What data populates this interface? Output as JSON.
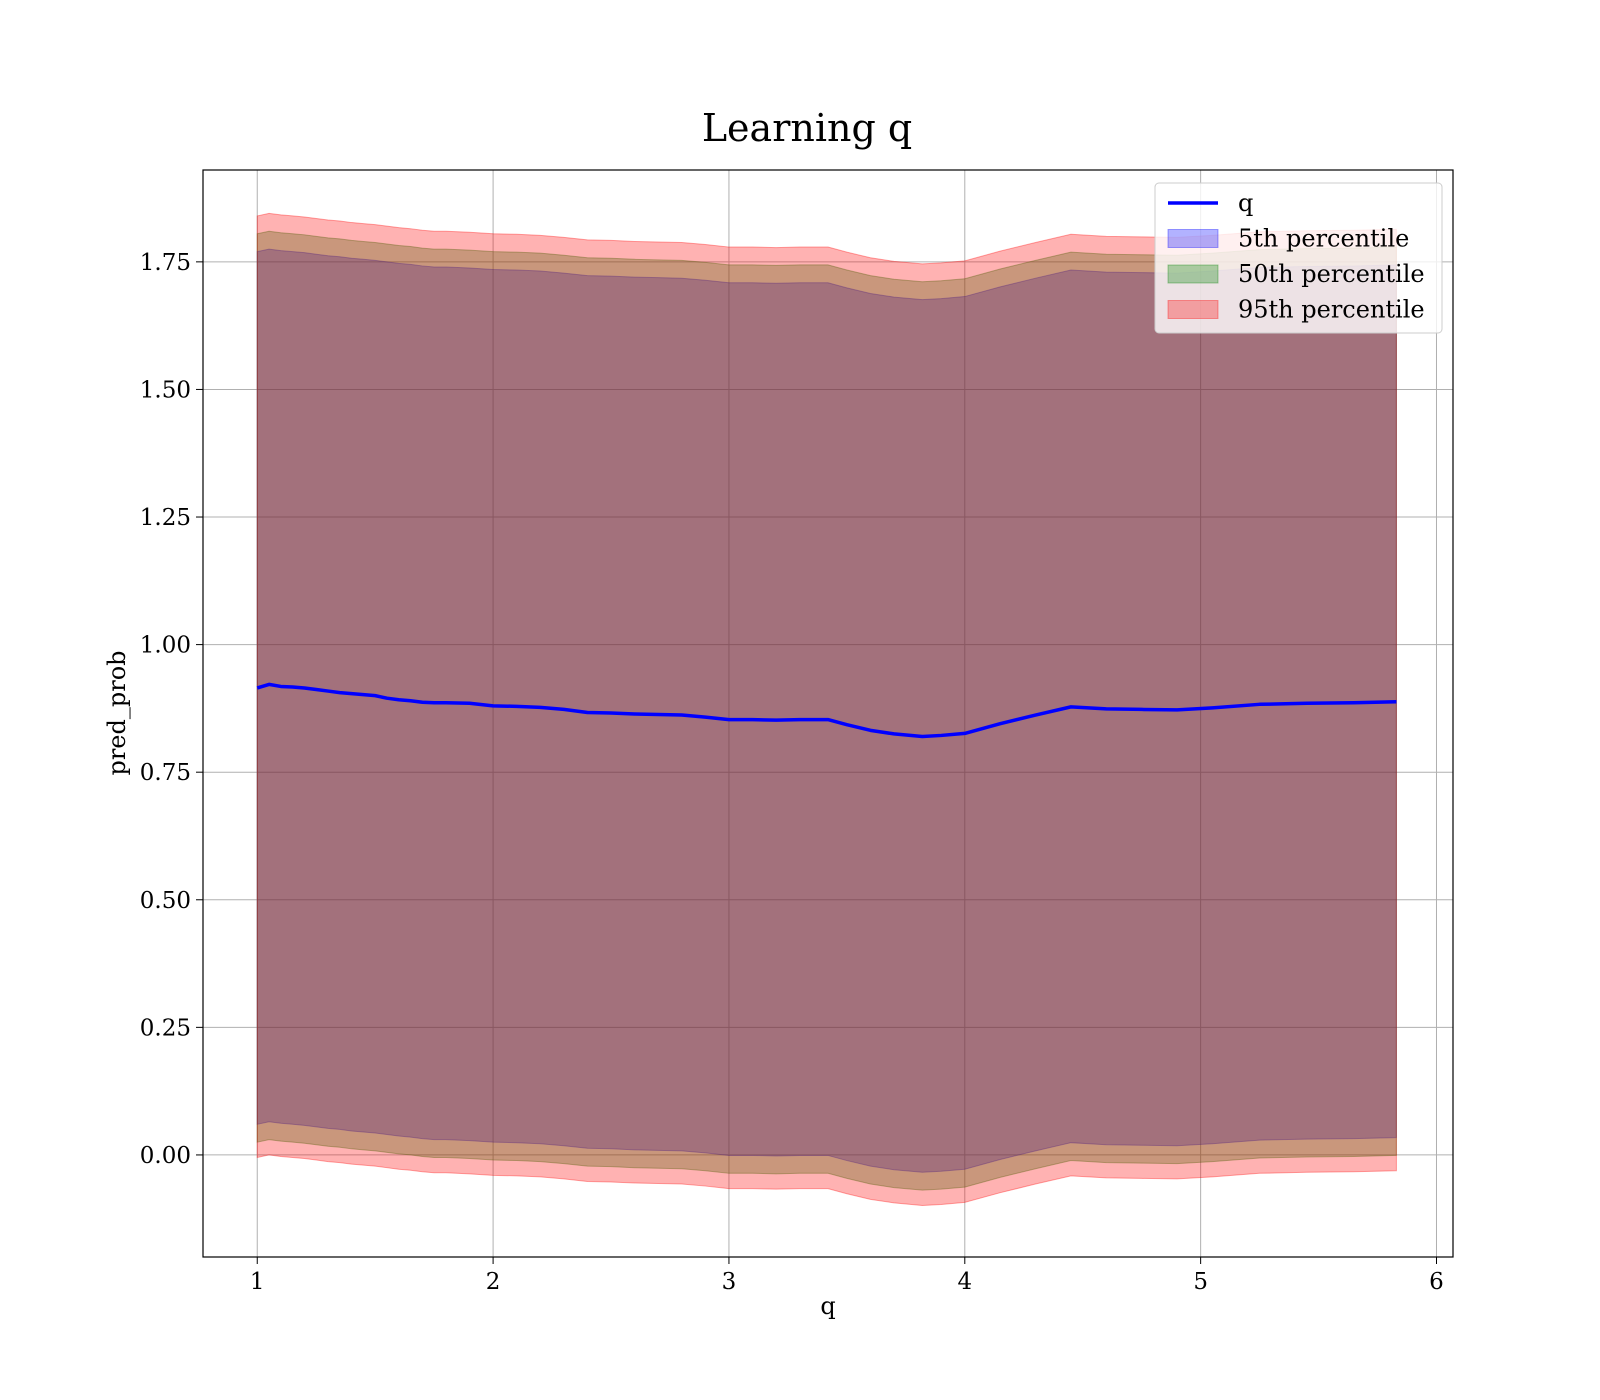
{
  "chart_data": {
    "type": "area",
    "title": "Learning q",
    "xlabel": "q",
    "ylabel": "pred_prob",
    "xlim": [
      0.77,
      6.07
    ],
    "ylim": [
      -0.2,
      1.93
    ],
    "xticks": [
      1,
      2,
      3,
      4,
      5,
      6
    ],
    "yticks": [
      0.0,
      0.25,
      0.5,
      0.75,
      1.0,
      1.25,
      1.5,
      1.75
    ],
    "grid": true,
    "legend_position": "top-right",
    "x": [
      1.0,
      1.05,
      1.1,
      1.15,
      1.2,
      1.25,
      1.3,
      1.35,
      1.4,
      1.45,
      1.5,
      1.55,
      1.6,
      1.65,
      1.7,
      1.75,
      1.8,
      1.9,
      2.0,
      2.1,
      2.2,
      2.3,
      2.4,
      2.5,
      2.6,
      2.7,
      2.8,
      2.9,
      3.0,
      3.1,
      3.2,
      3.3,
      3.42,
      3.5,
      3.6,
      3.7,
      3.82,
      3.9,
      4.0,
      4.15,
      4.3,
      4.45,
      4.6,
      4.75,
      4.9,
      5.05,
      5.25,
      5.45,
      5.65,
      5.83
    ],
    "series": [
      {
        "name": "q",
        "kind": "line",
        "color": "#0000ff",
        "values": [
          0.915,
          0.922,
          0.918,
          0.917,
          0.915,
          0.912,
          0.909,
          0.906,
          0.904,
          0.902,
          0.9,
          0.895,
          0.892,
          0.89,
          0.887,
          0.886,
          0.886,
          0.885,
          0.88,
          0.879,
          0.877,
          0.873,
          0.867,
          0.866,
          0.864,
          0.863,
          0.862,
          0.858,
          0.853,
          0.853,
          0.852,
          0.853,
          0.853,
          0.843,
          0.832,
          0.825,
          0.82,
          0.822,
          0.826,
          0.845,
          0.862,
          0.878,
          0.874,
          0.873,
          0.872,
          0.876,
          0.883,
          0.885,
          0.886,
          0.888
        ]
      },
      {
        "name": "5th percentile",
        "kind": "band",
        "color": "#0000ff",
        "opacity": 0.3,
        "lower": [
          0.06,
          0.065,
          0.062,
          0.06,
          0.058,
          0.055,
          0.052,
          0.05,
          0.047,
          0.045,
          0.043,
          0.04,
          0.037,
          0.035,
          0.032,
          0.03,
          0.03,
          0.028,
          0.025,
          0.024,
          0.022,
          0.018,
          0.013,
          0.012,
          0.01,
          0.009,
          0.008,
          0.004,
          -0.001,
          -0.001,
          -0.002,
          -0.001,
          -0.001,
          -0.011,
          -0.022,
          -0.029,
          -0.034,
          -0.032,
          -0.028,
          -0.009,
          0.008,
          0.024,
          0.02,
          0.019,
          0.018,
          0.022,
          0.029,
          0.031,
          0.032,
          0.034
        ],
        "upper": [
          1.77,
          1.775,
          1.772,
          1.77,
          1.768,
          1.765,
          1.762,
          1.76,
          1.757,
          1.755,
          1.753,
          1.75,
          1.747,
          1.745,
          1.742,
          1.74,
          1.74,
          1.738,
          1.735,
          1.734,
          1.732,
          1.728,
          1.723,
          1.722,
          1.72,
          1.719,
          1.718,
          1.714,
          1.709,
          1.709,
          1.708,
          1.709,
          1.709,
          1.699,
          1.688,
          1.681,
          1.676,
          1.678,
          1.682,
          1.701,
          1.718,
          1.734,
          1.73,
          1.729,
          1.728,
          1.732,
          1.739,
          1.741,
          1.742,
          1.744
        ]
      },
      {
        "name": "50th percentile",
        "kind": "band",
        "color": "#008000",
        "opacity": 0.3,
        "lower": [
          0.025,
          0.03,
          0.027,
          0.025,
          0.023,
          0.02,
          0.017,
          0.015,
          0.012,
          0.01,
          0.008,
          0.005,
          0.002,
          0.0,
          -0.003,
          -0.005,
          -0.005,
          -0.007,
          -0.01,
          -0.011,
          -0.013,
          -0.017,
          -0.022,
          -0.023,
          -0.025,
          -0.026,
          -0.027,
          -0.031,
          -0.036,
          -0.036,
          -0.037,
          -0.036,
          -0.036,
          -0.046,
          -0.057,
          -0.064,
          -0.069,
          -0.067,
          -0.063,
          -0.044,
          -0.027,
          -0.011,
          -0.015,
          -0.016,
          -0.017,
          -0.013,
          -0.006,
          -0.004,
          -0.003,
          -0.001
        ],
        "upper": [
          1.805,
          1.81,
          1.807,
          1.805,
          1.803,
          1.8,
          1.797,
          1.795,
          1.792,
          1.79,
          1.788,
          1.785,
          1.782,
          1.78,
          1.777,
          1.775,
          1.775,
          1.773,
          1.77,
          1.769,
          1.767,
          1.763,
          1.758,
          1.757,
          1.755,
          1.754,
          1.753,
          1.749,
          1.744,
          1.744,
          1.743,
          1.744,
          1.744,
          1.734,
          1.723,
          1.716,
          1.711,
          1.713,
          1.717,
          1.736,
          1.753,
          1.769,
          1.765,
          1.764,
          1.763,
          1.767,
          1.774,
          1.776,
          1.777,
          1.779
        ]
      },
      {
        "name": "95th percentile",
        "kind": "band",
        "color": "#ff0000",
        "opacity": 0.3,
        "lower": [
          -0.005,
          0.0,
          -0.003,
          -0.005,
          -0.007,
          -0.01,
          -0.013,
          -0.015,
          -0.018,
          -0.02,
          -0.022,
          -0.025,
          -0.028,
          -0.03,
          -0.033,
          -0.035,
          -0.035,
          -0.037,
          -0.04,
          -0.041,
          -0.043,
          -0.047,
          -0.052,
          -0.053,
          -0.055,
          -0.056,
          -0.057,
          -0.061,
          -0.066,
          -0.066,
          -0.067,
          -0.066,
          -0.066,
          -0.076,
          -0.087,
          -0.094,
          -0.099,
          -0.097,
          -0.093,
          -0.074,
          -0.057,
          -0.041,
          -0.045,
          -0.046,
          -0.047,
          -0.043,
          -0.036,
          -0.034,
          -0.033,
          -0.031
        ],
        "upper": [
          1.84,
          1.845,
          1.842,
          1.84,
          1.838,
          1.835,
          1.832,
          1.83,
          1.827,
          1.825,
          1.823,
          1.82,
          1.817,
          1.815,
          1.812,
          1.81,
          1.81,
          1.808,
          1.805,
          1.804,
          1.802,
          1.798,
          1.793,
          1.792,
          1.79,
          1.789,
          1.788,
          1.784,
          1.779,
          1.779,
          1.778,
          1.779,
          1.779,
          1.769,
          1.758,
          1.751,
          1.746,
          1.748,
          1.752,
          1.771,
          1.788,
          1.804,
          1.8,
          1.799,
          1.798,
          1.802,
          1.809,
          1.811,
          1.812,
          1.814
        ]
      }
    ]
  }
}
